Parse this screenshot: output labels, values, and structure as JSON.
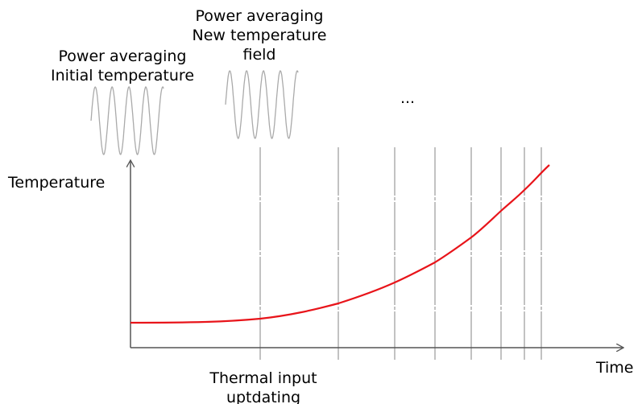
{
  "labels": {
    "initial": [
      "Power averaging",
      "Initial temperature"
    ],
    "new_field": [
      "Power averaging",
      "New temperature",
      "field"
    ],
    "ellipsis": "...",
    "y_axis": "Temperature",
    "x_axis": "Time",
    "bottom": [
      "Thermal input",
      "uptdating"
    ]
  }
}
